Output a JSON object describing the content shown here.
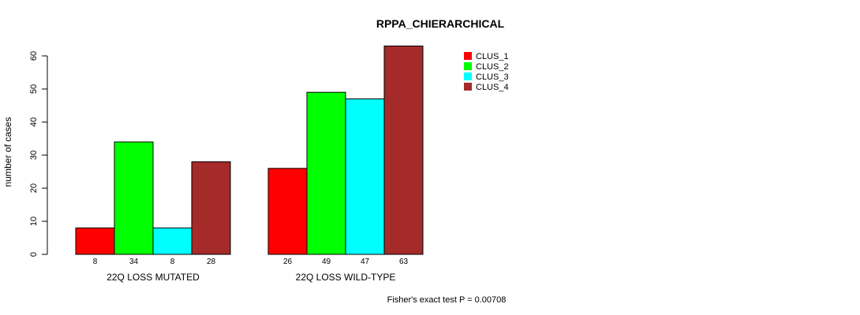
{
  "chart_data": {
    "type": "bar",
    "title": "RPPA_CHIERARCHICAL",
    "xlabel": "",
    "ylabel": "number of cases",
    "ylim": [
      0,
      60
    ],
    "yticks": [
      0,
      10,
      20,
      30,
      40,
      50,
      60
    ],
    "categories": [
      "22Q LOSS MUTATED",
      "22Q LOSS WILD-TYPE"
    ],
    "series": [
      {
        "name": "CLUS_1",
        "color": "#ff0000",
        "values": [
          8,
          26
        ]
      },
      {
        "name": "CLUS_2",
        "color": "#00ff00",
        "values": [
          34,
          49
        ]
      },
      {
        "name": "CLUS_3",
        "color": "#00ffff",
        "values": [
          8,
          47
        ]
      },
      {
        "name": "CLUS_4",
        "color": "#a52a2a",
        "values": [
          28,
          63
        ]
      }
    ],
    "legend_position": "top-right",
    "grid": false,
    "footnote": "Fisher's exact test P = 0.00708"
  }
}
